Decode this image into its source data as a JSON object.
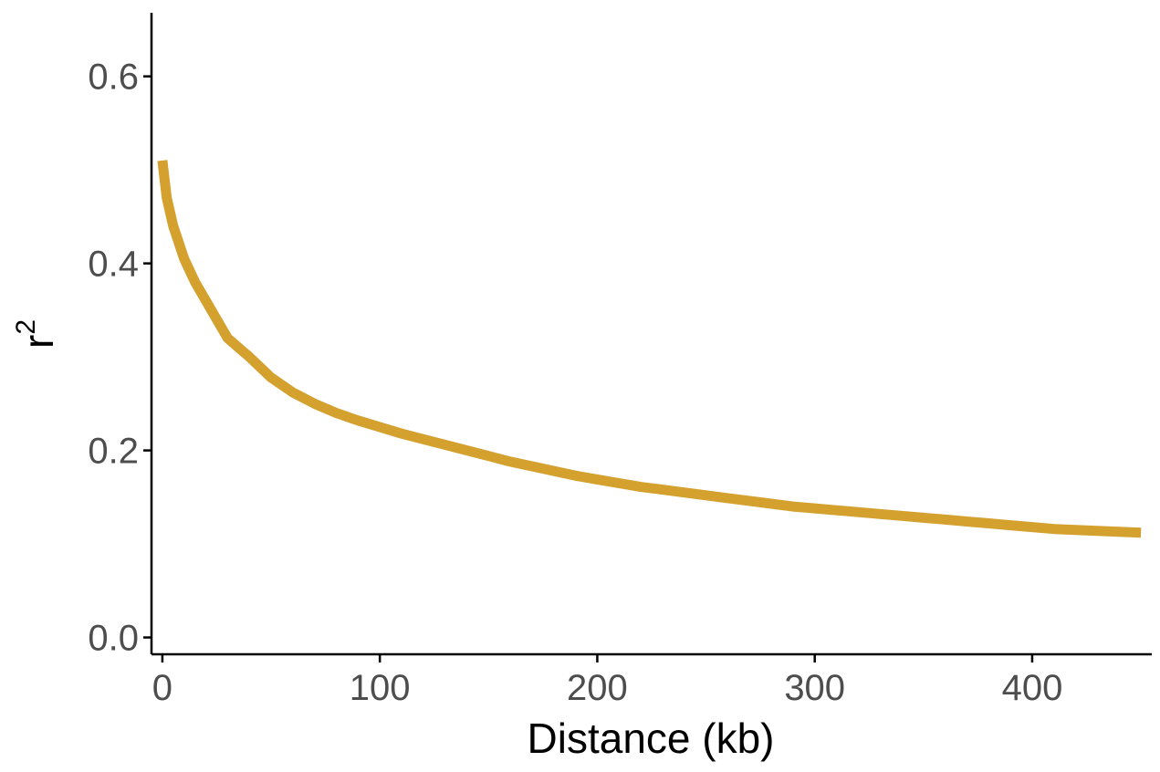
{
  "chart_data": {
    "type": "line",
    "title": "",
    "xlabel": "Distance (kb)",
    "ylabel": "r",
    "ylabel_superscript": "2",
    "xlim": [
      -5,
      455
    ],
    "ylim": [
      -0.018,
      0.668
    ],
    "xticks": [
      0,
      100,
      200,
      300,
      400
    ],
    "xtick_labels": [
      "0",
      "100",
      "200",
      "300",
      "400"
    ],
    "yticks": [
      0.0,
      0.2,
      0.4,
      0.6
    ],
    "ytick_labels": [
      "0.0",
      "0.2",
      "0.4",
      "0.6"
    ],
    "grid": false,
    "legend": "none",
    "series": [
      {
        "color": "#D4A02E",
        "x": [
          0,
          2,
          5,
          10,
          15,
          20,
          25,
          30,
          40,
          50,
          60,
          70,
          80,
          90,
          100,
          110,
          120,
          130,
          140,
          150,
          160,
          170,
          180,
          190,
          200,
          210,
          220,
          230,
          240,
          250,
          260,
          270,
          280,
          290,
          300,
          310,
          320,
          330,
          340,
          350,
          360,
          370,
          380,
          390,
          400,
          410,
          420,
          430,
          440,
          450
        ],
        "y": [
          0.51,
          0.47,
          0.44,
          0.405,
          0.38,
          0.36,
          0.34,
          0.32,
          0.3,
          0.278,
          0.262,
          0.25,
          0.24,
          0.232,
          0.225,
          0.218,
          0.212,
          0.206,
          0.2,
          0.194,
          0.188,
          0.183,
          0.178,
          0.173,
          0.169,
          0.165,
          0.161,
          0.158,
          0.155,
          0.152,
          0.149,
          0.146,
          0.143,
          0.14,
          0.138,
          0.136,
          0.134,
          0.132,
          0.13,
          0.128,
          0.126,
          0.124,
          0.122,
          0.12,
          0.118,
          0.116,
          0.115,
          0.114,
          0.113,
          0.112
        ]
      }
    ]
  }
}
